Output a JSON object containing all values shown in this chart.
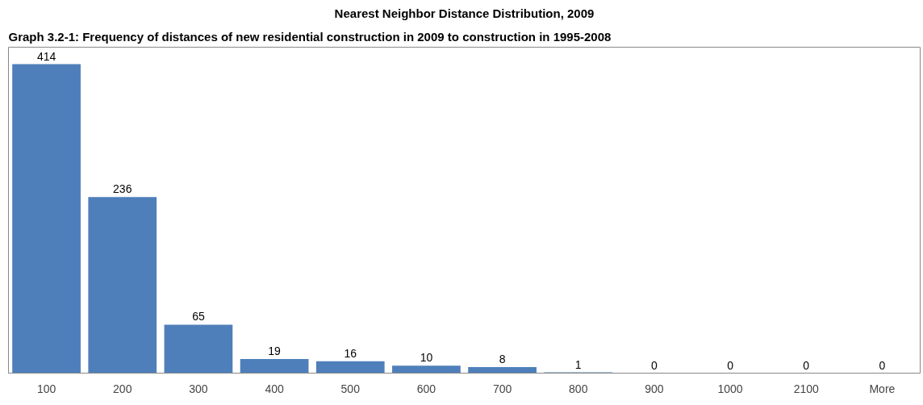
{
  "chart_data": {
    "type": "bar",
    "title": "Nearest Neighbor Distance Distribution, 2009",
    "annotations": [
      "Graph 3.2-1: Frequency of distances of new residential construction in 2009 to construction in 1995-2008"
    ],
    "categories": [
      "100",
      "200",
      "300",
      "400",
      "500",
      "600",
      "700",
      "800",
      "900",
      "1000",
      "2100",
      "More"
    ],
    "values": [
      414,
      236,
      65,
      19,
      16,
      10,
      8,
      1,
      0,
      0,
      0,
      0
    ],
    "color": "#4f7fba",
    "data_labels": true
  }
}
